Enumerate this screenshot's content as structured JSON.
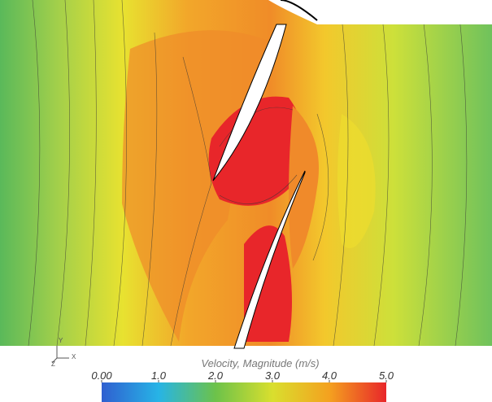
{
  "chart_data": {
    "type": "contour",
    "title": "Velocity, Magnitude (m/s)",
    "colorbar": {
      "lim": [
        0,
        5
      ],
      "ticks": [
        {
          "value": 0,
          "label": "0.00"
        },
        {
          "value": 1,
          "label": "1.0"
        },
        {
          "value": 2,
          "label": "2.0"
        },
        {
          "value": 3,
          "label": "3.0"
        },
        {
          "value": 4,
          "label": "4.0"
        },
        {
          "value": 5,
          "label": "5.0"
        }
      ],
      "colors": [
        "#2f5fd0",
        "#27b4e6",
        "#6cc24a",
        "#d9df2e",
        "#f4a11f",
        "#e8262a"
      ]
    },
    "axis_labels": [
      "Y",
      "Z",
      "X"
    ]
  }
}
